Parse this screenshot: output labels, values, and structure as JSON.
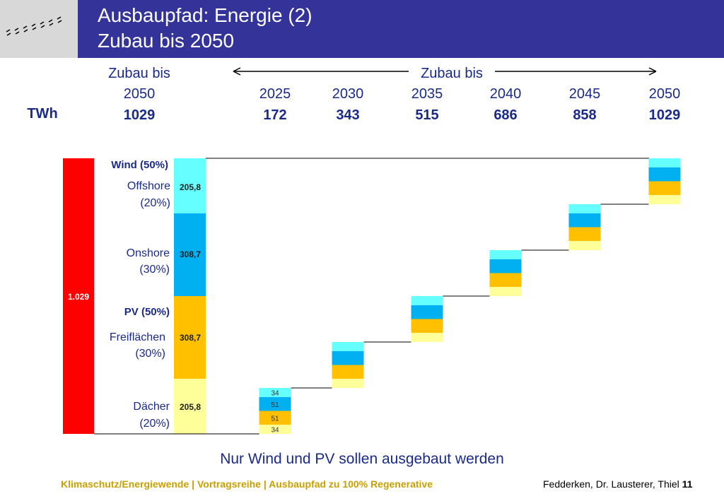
{
  "header": {
    "title_line1": "Ausbaupfad: Energie (2)",
    "title_line2": "Zubau bis 2050"
  },
  "colors": {
    "title_bar": "#33339a",
    "total_bar": "#ff0000",
    "wind_offshore": "#66ffff",
    "wind_onshore": "#00b0f0",
    "pv_freiflaechen": "#ffc000",
    "pv_daecher": "#ffff99",
    "label_blue": "#1a2a8a"
  },
  "chart_data": {
    "type": "bar",
    "title": "Zubau bis 2050",
    "unit": "TWh",
    "header_left": "Zubau bis",
    "header_right": "Zubau bis",
    "total": {
      "year": "2050",
      "value": 1029,
      "label": "1.029"
    },
    "years": [
      "2025",
      "2030",
      "2035",
      "2040",
      "2045",
      "2050"
    ],
    "cumulative_twh": [
      172,
      343,
      515,
      686,
      858,
      1029
    ],
    "increment_twh": 171.5,
    "breakdown": [
      {
        "group": "Wind (50%)",
        "name": "Offshore",
        "share": "(20%)",
        "value": 205.8,
        "label": "205,8",
        "increment_label": "34"
      },
      {
        "group": "Wind (50%)",
        "name": "Onshore",
        "share": "(30%)",
        "value": 308.7,
        "label": "308,7",
        "increment_label": "51"
      },
      {
        "group": "PV (50%)",
        "name": "Freiflächen",
        "share": "(30%)",
        "value": 308.7,
        "label": "308,7",
        "increment_label": "51"
      },
      {
        "group": "PV (50%)",
        "name": "Dächer",
        "share": "(20%)",
        "value": 205.8,
        "label": "205,8",
        "increment_label": "34"
      }
    ],
    "group_labels": [
      "Wind (50%)",
      "PV (50%)"
    ],
    "caption": "Nur Wind und PV sollen ausgebaut werden"
  },
  "footer": {
    "left": "Klimaschutz/Energiewende | Vortragsreihe | Ausbaupfad zu 100% Regenerative",
    "right_authors": "Fedderken, Dr. Lausterer, Thiel",
    "page": "11"
  }
}
